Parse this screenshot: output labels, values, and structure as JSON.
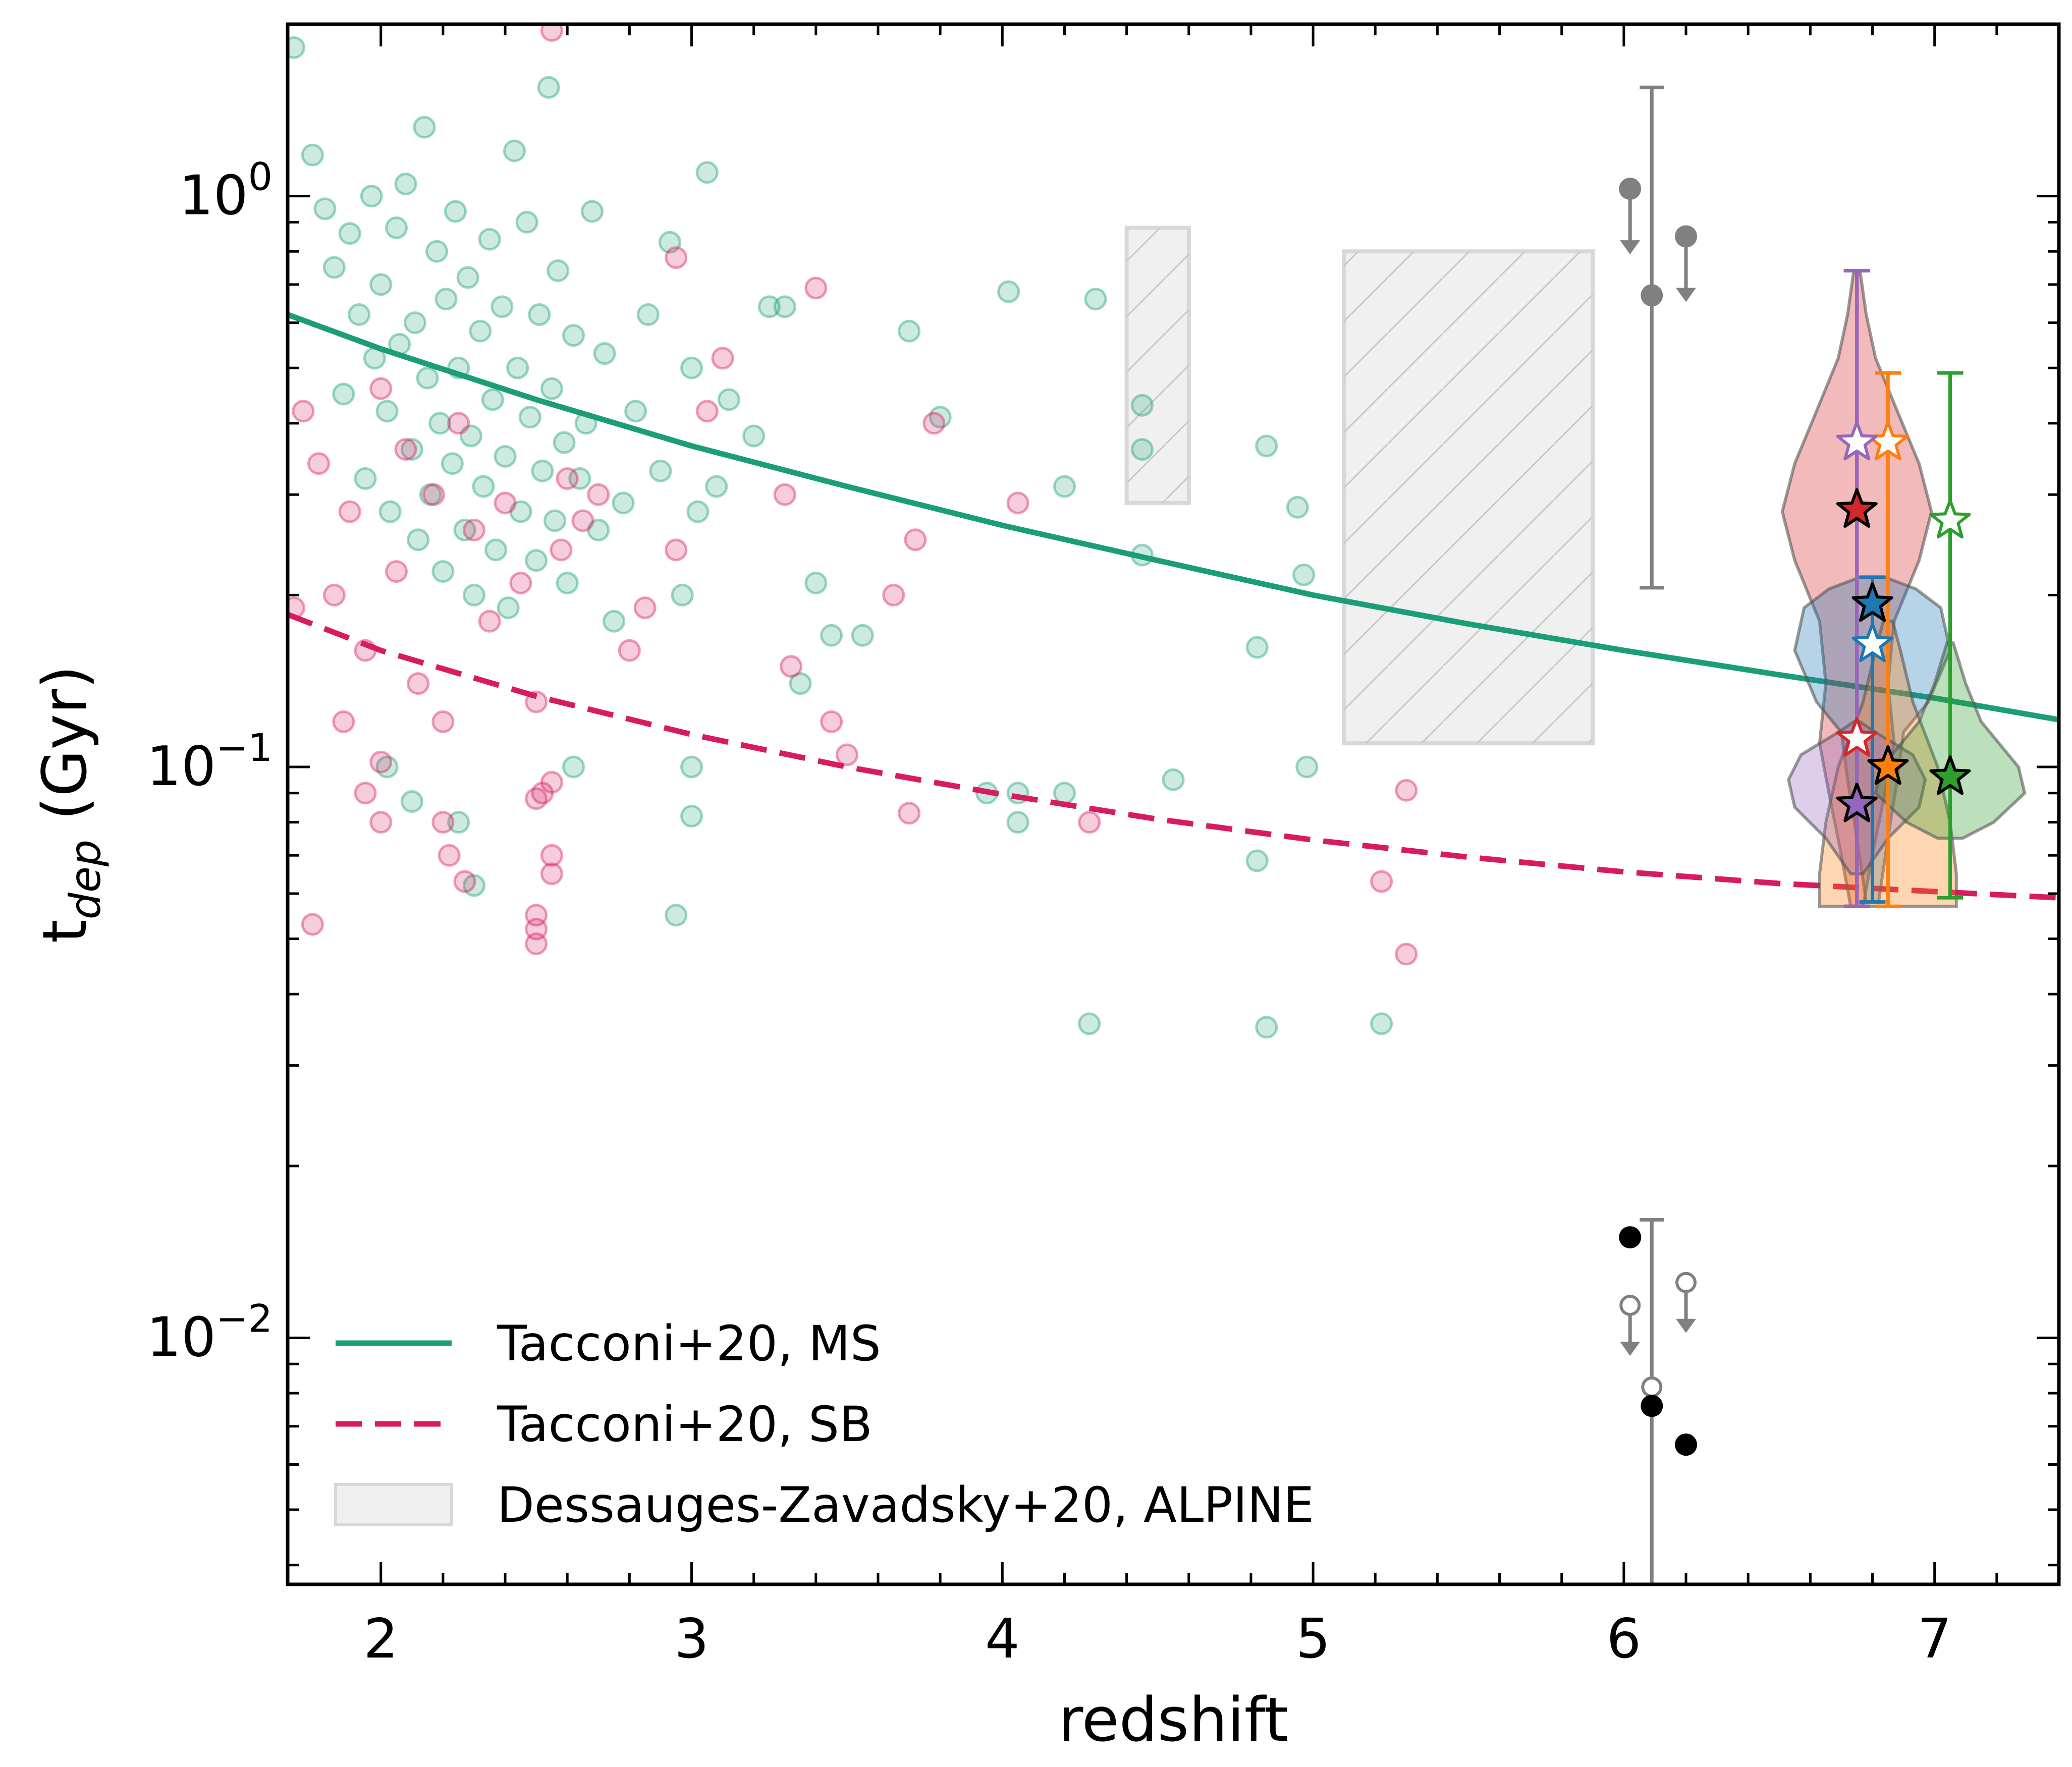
{
  "chart_data": {
    "type": "scatter",
    "title": "",
    "xlabel": "redshift",
    "ylabel": {
      "base": "t",
      "sub": "dep",
      "rest": " (Gyr)"
    },
    "xlim": [
      1.7,
      7.4
    ],
    "ylim": [
      0.0037,
      2.0
    ],
    "yscale": "log",
    "xticks": [
      {
        "v": 2,
        "label": "2"
      },
      {
        "v": 3,
        "label": "3"
      },
      {
        "v": 4,
        "label": "4"
      },
      {
        "v": 5,
        "label": "5"
      },
      {
        "v": 6,
        "label": "6"
      },
      {
        "v": 7,
        "label": "7"
      }
    ],
    "yticks": [
      {
        "v": 1,
        "base": "10",
        "exp": "0"
      },
      {
        "v": 0.1,
        "base": "10",
        "exp": "−1"
      },
      {
        "v": 0.01,
        "base": "10",
        "exp": "−2"
      }
    ],
    "colors": {
      "ms": "#1b9e77",
      "sb": "#d81b60",
      "gray": "#808080",
      "black": "#000000",
      "box_fill": "#f0f0f0",
      "box_edge": "#d8d8d8"
    },
    "series": [
      {
        "name": "Tacconi+20, MS",
        "style": "solid",
        "x": [
          1.7,
          2.0,
          2.5,
          3.0,
          3.5,
          4.0,
          4.5,
          5.0,
          5.5,
          6.0,
          6.5,
          7.0,
          7.4
        ],
        "y": [
          0.62,
          0.54,
          0.44,
          0.365,
          0.31,
          0.265,
          0.23,
          0.2,
          0.178,
          0.16,
          0.145,
          0.132,
          0.121
        ]
      },
      {
        "name": "Tacconi+20, SB",
        "style": "dashed",
        "x": [
          1.7,
          2.0,
          2.5,
          3.0,
          3.5,
          4.0,
          4.5,
          5.0,
          5.5,
          6.0,
          6.5,
          7.0,
          7.4
        ],
        "y": [
          0.185,
          0.16,
          0.133,
          0.114,
          0.1,
          0.0895,
          0.081,
          0.0745,
          0.0695,
          0.0655,
          0.0625,
          0.0605,
          0.059
        ]
      }
    ],
    "boxes": [
      {
        "name": "Dessauges-Zavadsky+20, ALPINE",
        "x0": 4.4,
        "x1": 4.6,
        "y0": 0.29,
        "y1": 0.88
      },
      {
        "name": "Dessauges-Zavadsky+20, ALPINE",
        "x0": 5.1,
        "x1": 5.9,
        "y0": 0.11,
        "y1": 0.8
      }
    ],
    "ms_points": [
      [
        1.72,
        1.82
      ],
      [
        1.78,
        1.18
      ],
      [
        1.82,
        0.95
      ],
      [
        1.85,
        0.75
      ],
      [
        1.88,
        0.45
      ],
      [
        1.9,
        0.86
      ],
      [
        1.93,
        0.62
      ],
      [
        1.95,
        0.32
      ],
      [
        1.97,
        1.0
      ],
      [
        1.98,
        0.52
      ],
      [
        2.0,
        0.7
      ],
      [
        2.02,
        0.42
      ],
      [
        2.03,
        0.28
      ],
      [
        2.05,
        0.88
      ],
      [
        2.06,
        0.55
      ],
      [
        2.08,
        1.05
      ],
      [
        2.1,
        0.36
      ],
      [
        2.11,
        0.6
      ],
      [
        2.12,
        0.25
      ],
      [
        2.14,
        1.32
      ],
      [
        2.15,
        0.48
      ],
      [
        2.16,
        0.3
      ],
      [
        2.18,
        0.8
      ],
      [
        2.19,
        0.4
      ],
      [
        2.2,
        0.22
      ],
      [
        2.21,
        0.66
      ],
      [
        2.23,
        0.34
      ],
      [
        2.24,
        0.94
      ],
      [
        2.25,
        0.5
      ],
      [
        2.27,
        0.26
      ],
      [
        2.28,
        0.72
      ],
      [
        2.29,
        0.38
      ],
      [
        2.3,
        0.2
      ],
      [
        2.32,
        0.58
      ],
      [
        2.33,
        0.31
      ],
      [
        2.35,
        0.84
      ],
      [
        2.36,
        0.44
      ],
      [
        2.37,
        0.24
      ],
      [
        2.39,
        0.64
      ],
      [
        2.4,
        0.35
      ],
      [
        2.41,
        0.19
      ],
      [
        2.43,
        1.2
      ],
      [
        2.44,
        0.5
      ],
      [
        2.45,
        0.28
      ],
      [
        2.47,
        0.9
      ],
      [
        2.48,
        0.41
      ],
      [
        2.5,
        0.23
      ],
      [
        2.51,
        0.62
      ],
      [
        2.52,
        0.33
      ],
      [
        2.54,
        1.55
      ],
      [
        2.55,
        0.46
      ],
      [
        2.56,
        0.27
      ],
      [
        2.57,
        0.74
      ],
      [
        2.59,
        0.37
      ],
      [
        2.6,
        0.21
      ],
      [
        2.62,
        0.57
      ],
      [
        2.64,
        0.32
      ],
      [
        2.66,
        0.4
      ],
      [
        2.68,
        0.94
      ],
      [
        2.7,
        0.26
      ],
      [
        2.72,
        0.53
      ],
      [
        2.75,
        0.18
      ],
      [
        2.78,
        0.29
      ],
      [
        2.82,
        0.42
      ],
      [
        2.86,
        0.62
      ],
      [
        2.9,
        0.33
      ],
      [
        2.93,
        0.83
      ],
      [
        2.97,
        0.2
      ],
      [
        3.0,
        0.5
      ],
      [
        3.02,
        0.28
      ],
      [
        3.05,
        1.1
      ],
      [
        3.08,
        0.31
      ],
      [
        3.12,
        0.44
      ],
      [
        3.2,
        0.38
      ],
      [
        3.25,
        0.64
      ],
      [
        3.3,
        0.64
      ],
      [
        3.35,
        0.14
      ],
      [
        3.4,
        0.21
      ],
      [
        3.45,
        0.17
      ],
      [
        3.55,
        0.17
      ],
      [
        3.7,
        0.58
      ],
      [
        3.8,
        0.41
      ],
      [
        4.02,
        0.68
      ],
      [
        4.2,
        0.31
      ],
      [
        4.3,
        0.66
      ],
      [
        4.45,
        0.36
      ],
      [
        4.45,
        0.43
      ],
      [
        4.45,
        0.235
      ],
      [
        4.85,
        0.365
      ],
      [
        4.95,
        0.285
      ],
      [
        4.97,
        0.217
      ],
      [
        4.82,
        0.162
      ],
      [
        4.98,
        0.1
      ],
      [
        4.55,
        0.095
      ],
      [
        3.95,
        0.09
      ],
      [
        4.05,
        0.09
      ],
      [
        4.05,
        0.08
      ],
      [
        4.2,
        0.09
      ],
      [
        4.28,
        0.0355
      ],
      [
        4.82,
        0.0685
      ],
      [
        4.85,
        0.035
      ],
      [
        5.22,
        0.0355
      ],
      [
        3.0,
        0.1
      ],
      [
        3.0,
        0.082
      ],
      [
        2.95,
        0.055
      ],
      [
        2.3,
        0.062
      ],
      [
        2.25,
        0.08
      ],
      [
        2.1,
        0.087
      ],
      [
        2.02,
        0.1
      ],
      [
        2.62,
        0.1
      ]
    ],
    "sb_points": [
      [
        1.75,
        0.42
      ],
      [
        1.8,
        0.34
      ],
      [
        1.85,
        0.2
      ],
      [
        1.9,
        0.28
      ],
      [
        1.95,
        0.16
      ],
      [
        2.0,
        0.46
      ],
      [
        2.05,
        0.22
      ],
      [
        2.08,
        0.36
      ],
      [
        2.12,
        0.14
      ],
      [
        2.17,
        0.3
      ],
      [
        2.2,
        0.12
      ],
      [
        2.25,
        0.4
      ],
      [
        2.3,
        0.26
      ],
      [
        2.35,
        0.18
      ],
      [
        2.4,
        0.29
      ],
      [
        2.45,
        0.21
      ],
      [
        2.5,
        0.13
      ],
      [
        2.52,
        0.09
      ],
      [
        2.55,
        0.07
      ],
      [
        2.58,
        0.24
      ],
      [
        2.6,
        0.32
      ],
      [
        2.65,
        0.27
      ],
      [
        2.7,
        0.3
      ],
      [
        2.8,
        0.16
      ],
      [
        2.85,
        0.19
      ],
      [
        2.95,
        0.78
      ],
      [
        2.95,
        0.24
      ],
      [
        3.05,
        0.42
      ],
      [
        3.1,
        0.52
      ],
      [
        3.3,
        0.3
      ],
      [
        3.32,
        0.15
      ],
      [
        3.4,
        0.69
      ],
      [
        3.45,
        0.12
      ],
      [
        3.5,
        0.105
      ],
      [
        3.65,
        0.2
      ],
      [
        3.72,
        0.25
      ],
      [
        3.78,
        0.4
      ],
      [
        4.05,
        0.29
      ],
      [
        4.28,
        0.08
      ],
      [
        5.22,
        0.063
      ],
      [
        5.3,
        0.091
      ],
      [
        5.3,
        0.047
      ],
      [
        1.88,
        0.12
      ],
      [
        2.0,
        0.102
      ],
      [
        1.95,
        0.09
      ],
      [
        2.0,
        0.08
      ],
      [
        2.2,
        0.08
      ],
      [
        2.22,
        0.07
      ],
      [
        2.27,
        0.063
      ],
      [
        2.5,
        0.088
      ],
      [
        2.55,
        0.094
      ],
      [
        2.55,
        0.065
      ],
      [
        2.5,
        0.055
      ],
      [
        2.5,
        0.052
      ],
      [
        2.5,
        0.049
      ],
      [
        1.78,
        0.053
      ],
      [
        2.55,
        1.95
      ],
      [
        1.72,
        0.19
      ],
      [
        3.7,
        0.083
      ]
    ],
    "gray_upper_limits": [
      {
        "x": 6.02,
        "y": 1.03
      },
      {
        "x": 6.2,
        "y": 0.85
      }
    ],
    "gray_points_err": [
      {
        "x": 6.09,
        "y": 0.67,
        "ylo": 0.206,
        "yhi": 1.55
      }
    ],
    "black_points": [
      {
        "x": 6.02,
        "y": 0.015
      },
      {
        "x": 6.09,
        "y": 0.0076
      },
      {
        "x": 6.2,
        "y": 0.0065
      }
    ],
    "open_gray_points": [
      {
        "x": 6.09,
        "y": 0.0082,
        "ylo": 0.0036,
        "yhi": 0.0161
      }
    ],
    "open_gray_upper_limits": [
      {
        "x": 6.02,
        "y": 0.0114
      },
      {
        "x": 6.2,
        "y": 0.0125
      }
    ],
    "violins": [
      {
        "name": "red",
        "color": "#d62728",
        "x": 6.75,
        "ymin": 0.057,
        "ymax": 0.74,
        "filled_star": 0.282,
        "open_star": 0.112,
        "profile": [
          [
            0.057,
            0.02
          ],
          [
            0.07,
            0.05
          ],
          [
            0.09,
            0.09
          ],
          [
            0.11,
            0.12
          ],
          [
            0.14,
            0.1
          ],
          [
            0.18,
            0.12
          ],
          [
            0.23,
            0.2
          ],
          [
            0.28,
            0.24
          ],
          [
            0.34,
            0.2
          ],
          [
            0.42,
            0.13
          ],
          [
            0.52,
            0.06
          ],
          [
            0.62,
            0.03
          ],
          [
            0.74,
            0.01
          ]
        ]
      },
      {
        "name": "blue",
        "color": "#1f77b4",
        "x": 6.8,
        "ymin": 0.058,
        "ymax": 0.215,
        "filled_star": 0.193,
        "open_star": 0.164,
        "profile": [
          [
            0.058,
            0.02
          ],
          [
            0.075,
            0.05
          ],
          [
            0.095,
            0.08
          ],
          [
            0.115,
            0.1
          ],
          [
            0.13,
            0.18
          ],
          [
            0.16,
            0.25
          ],
          [
            0.19,
            0.22
          ],
          [
            0.205,
            0.14
          ],
          [
            0.215,
            0.04
          ]
        ]
      },
      {
        "name": "orange",
        "color": "#ff7f0e",
        "x": 6.85,
        "ymin": 0.057,
        "ymax": 0.49,
        "filled_star": 0.1,
        "open_star": 0.37,
        "profile": [
          [
            0.057,
            0.22
          ],
          [
            0.065,
            0.22
          ],
          [
            0.08,
            0.2
          ],
          [
            0.1,
            0.16
          ],
          [
            0.13,
            0.08
          ],
          [
            0.16,
            0.04
          ],
          [
            0.18,
            0.015
          ]
        ]
      },
      {
        "name": "purple",
        "color": "#9467bd",
        "x": 6.75,
        "ymin": 0.057,
        "ymax": 0.74,
        "filled_star": 0.086,
        "open_star": 0.37,
        "profile": [
          [
            0.065,
            0.02
          ],
          [
            0.075,
            0.1
          ],
          [
            0.085,
            0.2
          ],
          [
            0.095,
            0.22
          ],
          [
            0.105,
            0.18
          ],
          [
            0.115,
            0.06
          ],
          [
            0.12,
            0.01
          ]
        ]
      },
      {
        "name": "green",
        "color": "#2ca02c",
        "x": 7.05,
        "ymin": 0.059,
        "ymax": 0.49,
        "filled_star": 0.096,
        "open_star": 0.27,
        "profile": [
          [
            0.075,
            0.04
          ],
          [
            0.08,
            0.14
          ],
          [
            0.09,
            0.24
          ],
          [
            0.1,
            0.22
          ],
          [
            0.12,
            0.1
          ],
          [
            0.14,
            0.05
          ],
          [
            0.165,
            0.01
          ]
        ]
      }
    ],
    "legend": {
      "placement": "lower-left",
      "items": [
        {
          "label": "Tacconi+20, MS",
          "kind": "solid"
        },
        {
          "label": "Tacconi+20, SB",
          "kind": "dashed"
        },
        {
          "label": "Dessauges-Zavadsky+20, ALPINE",
          "kind": "box"
        }
      ]
    }
  }
}
